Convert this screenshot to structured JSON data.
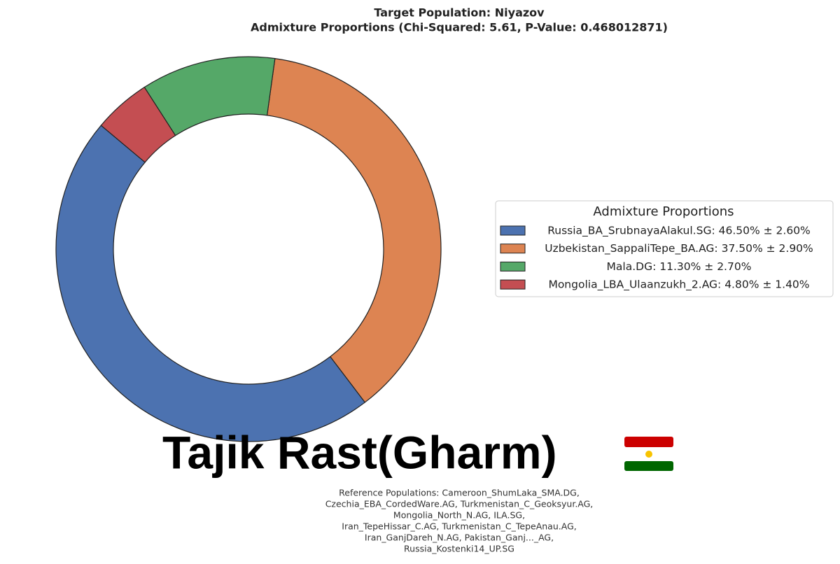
{
  "chart_data": {
    "type": "pie",
    "donut": true,
    "title": "Target Population: Niyazov",
    "subtitle": "Admixture Proportions (Chi-Squared: 5.61, P-Value: 0.468012871)",
    "categories": [
      "Russia_BA_SrubnayaAlakul.SG",
      "Uzbekistan_SappaliTepe_BA.AG",
      "Mala.DG",
      "Mongolia_LBA_Ulaanzukh_2.AG"
    ],
    "values": [
      46.5,
      37.5,
      11.3,
      4.8
    ],
    "errors": [
      2.6,
      2.9,
      2.7,
      1.4
    ],
    "colors": [
      "#4c72b0",
      "#dd8452",
      "#55a868",
      "#c44e52"
    ],
    "legend_title": "Admixture Proportions",
    "legend_labels": [
      "Russia_BA_SrubnayaAlakul.SG: 46.50% ± 2.60%",
      "Uzbekistan_SappaliTepe_BA.AG: 37.50% ± 2.90%",
      "Mala.DG: 11.30% ± 2.70%",
      "Mongolia_LBA_Ulaanzukh_2.AG: 4.80% ± 1.40%"
    ],
    "legend_position": "right"
  },
  "overlay": {
    "caption": "Tajik Rast(Gharm)",
    "reference_lines": [
      "Reference Populations: Cameroon_ShumLaka_SMA.DG,",
      "Czechia_EBA_CordedWare.AG, Turkmenistan_C_Geoksyur.AG,",
      "Mongolia_North_N.AG,                  ILA.SG,",
      "Iran_TepeHissar_C.AG, Turkmenistan_C_TepeAnau.AG,",
      "Iran_GanjDareh_N.AG, Pakistan_Ganj..._AG,",
      "Russia_Kostenki14_UP.SG"
    ]
  }
}
